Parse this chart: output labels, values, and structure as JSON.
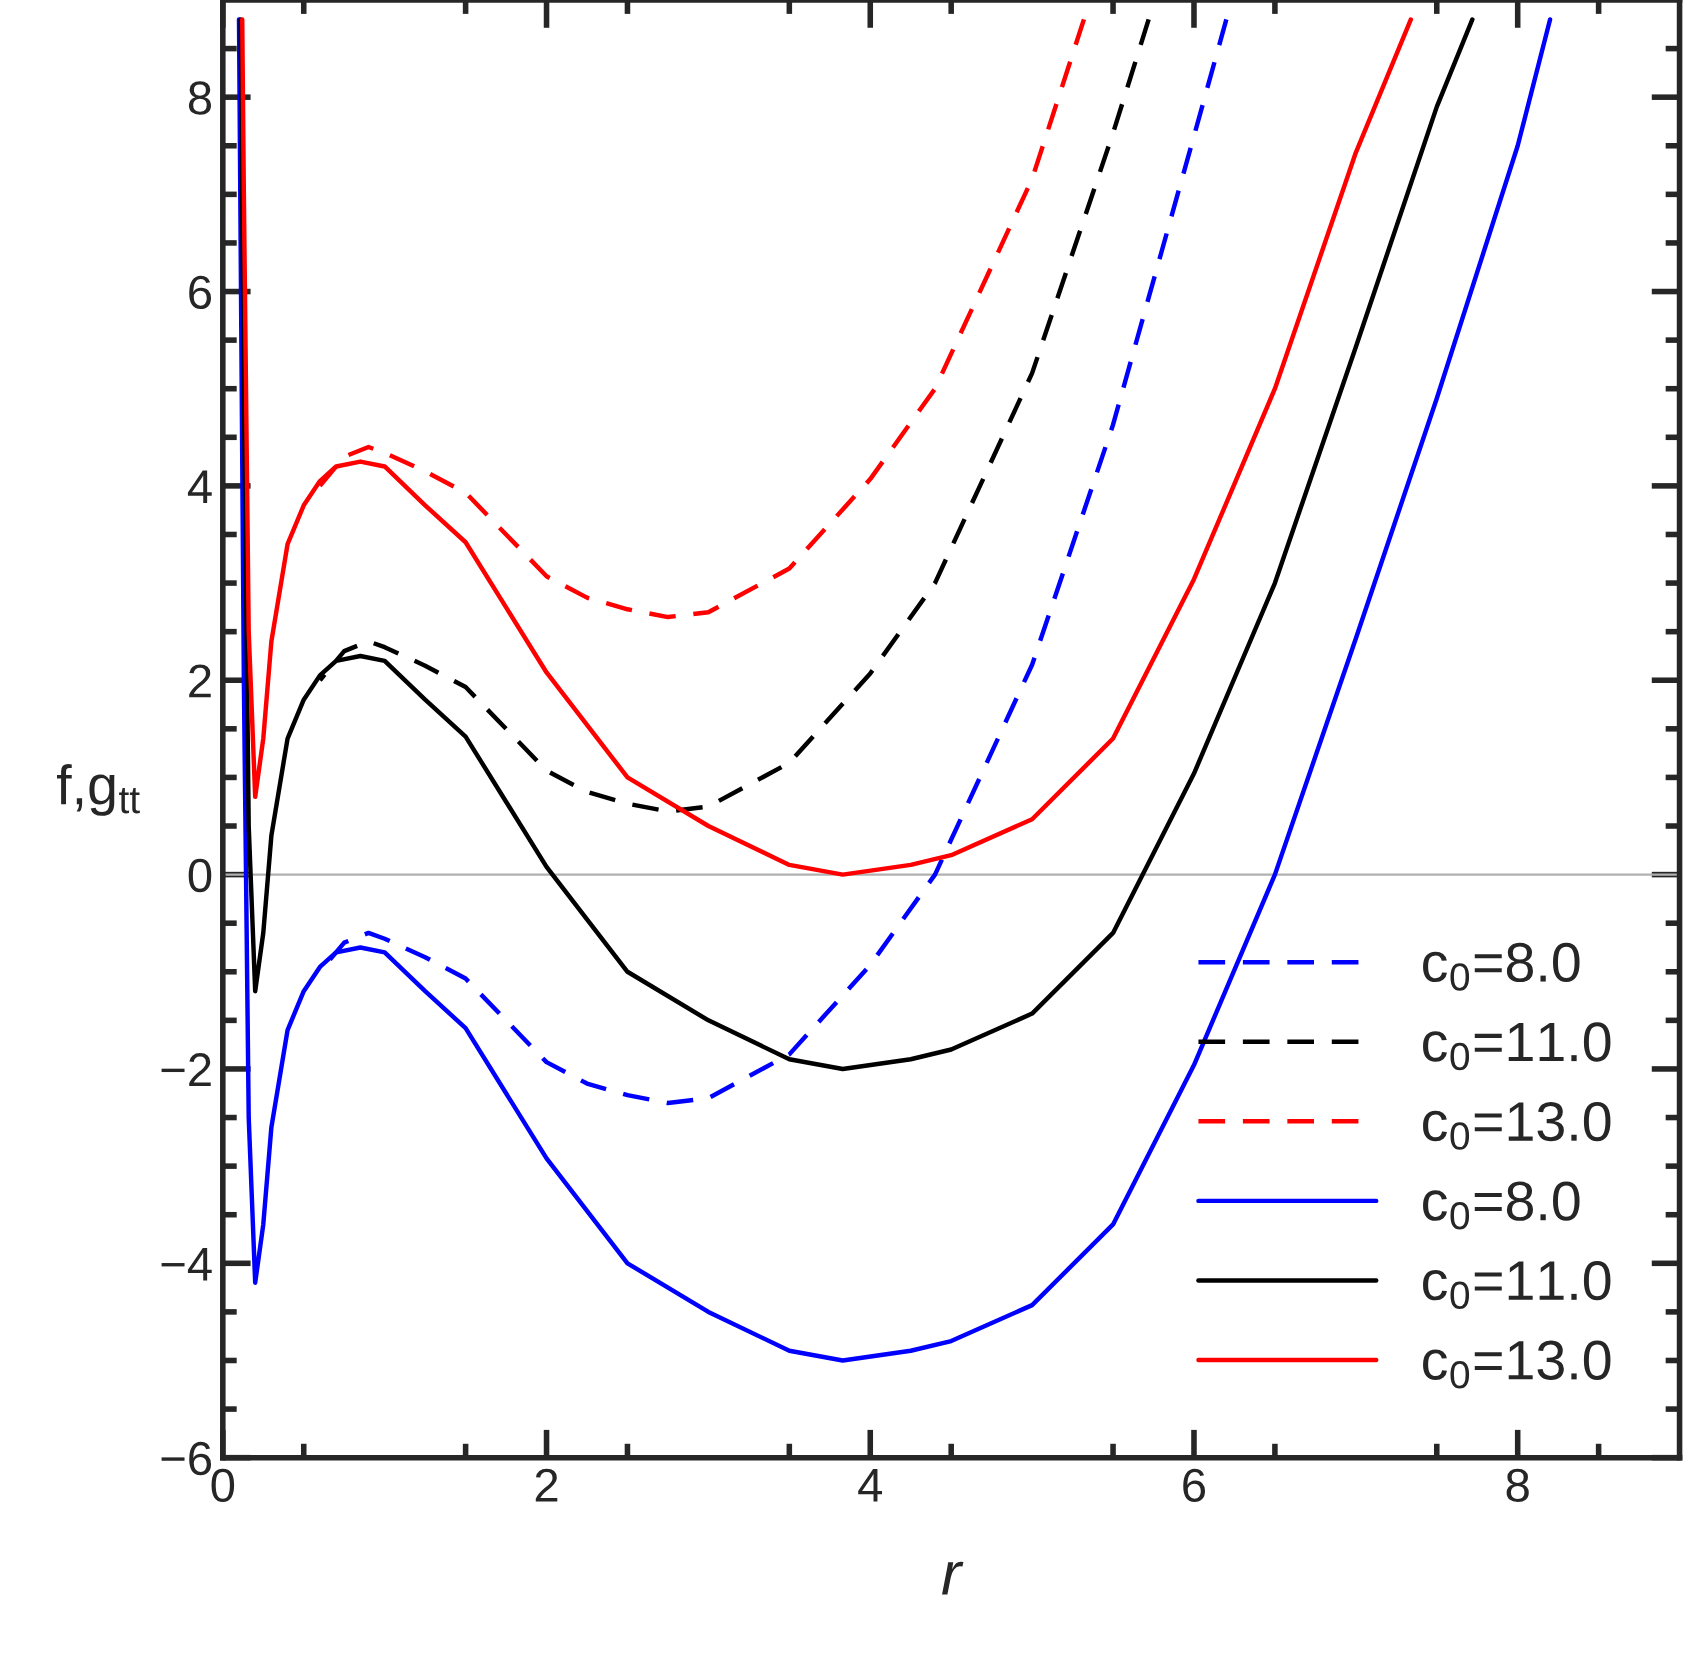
{
  "chart_data": {
    "type": "line",
    "xlabel": "r",
    "ylabel": "f,g$_{tt}$",
    "xlim": [
      0,
      9
    ],
    "xticks": [
      0,
      2,
      4,
      6,
      8
    ],
    "ylim": [
      -6,
      9
    ],
    "yticks": [
      {
        "value": -6,
        "label": "−6"
      },
      {
        "value": -4,
        "label": "−4"
      },
      {
        "value": -2,
        "label": "−2"
      },
      0,
      2,
      4,
      6,
      8
    ],
    "grid": false,
    "legend": "bottom right",
    "marker": "none",
    "ref_lines": [
      {
        "axis": "y",
        "value": 0,
        "color": "#b0b0b0",
        "line_style": "solid"
      }
    ],
    "series": [
      {
        "name": "c$_{0}$=8.0",
        "color": "#0000ff",
        "line_style": "dashed",
        "x": [
          0.6,
          0.75,
          0.9,
          1.0,
          1.25,
          1.5,
          1.75,
          2.0,
          2.25,
          2.5,
          2.75,
          3.0,
          3.5,
          4.0,
          4.4,
          5.0,
          5.5,
          6.0,
          6.2
        ],
        "values": [
          -1.0,
          -0.7,
          -0.6,
          -0.66,
          -0.85,
          -1.07,
          -1.5,
          -1.93,
          -2.15,
          -2.27,
          -2.35,
          -2.3,
          -1.85,
          -0.93,
          0,
          2.16,
          4.63,
          7.6,
          8.8
        ]
      },
      {
        "name": "c$_{0}$=11.0",
        "color": "#000000",
        "line_style": "dashed",
        "x": [
          0.6,
          0.75,
          0.9,
          1.0,
          1.25,
          1.5,
          1.75,
          2.0,
          2.25,
          2.5,
          2.75,
          3.0,
          3.5,
          4.0,
          4.4,
          5.0,
          5.5,
          5.72
        ],
        "values": [
          2.0,
          2.3,
          2.4,
          2.34,
          2.15,
          1.93,
          1.5,
          1.07,
          0.85,
          0.73,
          0.65,
          0.7,
          1.15,
          2.07,
          3.0,
          5.16,
          7.63,
          8.8
        ]
      },
      {
        "name": "c$_{0}$=13.0",
        "color": "#ff0000",
        "line_style": "dashed",
        "x": [
          0.6,
          0.75,
          0.9,
          1.0,
          1.25,
          1.5,
          1.75,
          2.0,
          2.25,
          2.5,
          2.75,
          3.0,
          3.5,
          4.0,
          4.4,
          5.0,
          5.32
        ],
        "values": [
          4.0,
          4.3,
          4.4,
          4.34,
          4.15,
          3.93,
          3.5,
          3.07,
          2.85,
          2.73,
          2.65,
          2.7,
          3.15,
          4.07,
          5.0,
          7.16,
          8.8
        ]
      },
      {
        "name": "c$_{0}$=8.0",
        "color": "#0000ff",
        "line_style": "solid",
        "x": [
          0.1,
          0.13,
          0.16,
          0.2,
          0.25,
          0.3,
          0.4,
          0.5,
          0.6,
          0.7,
          0.85,
          1.0,
          1.25,
          1.5,
          1.75,
          2.0,
          2.5,
          3.0,
          3.5,
          3.83,
          4.25,
          4.5,
          5.0,
          5.5,
          6.0,
          6.5,
          7.0,
          7.5,
          8.0,
          8.2
        ],
        "values": [
          8.8,
          2,
          -2.5,
          -4.2,
          -3.6,
          -2.6,
          -1.6,
          -1.2,
          -0.95,
          -0.8,
          -0.75,
          -0.8,
          -1.2,
          -1.58,
          -2.25,
          -2.92,
          -4.0,
          -4.5,
          -4.9,
          -5.0,
          -4.9,
          -4.8,
          -4.43,
          -3.6,
          -1.96,
          0,
          2.43,
          4.9,
          7.5,
          8.8
        ]
      },
      {
        "name": "c$_{0}$=11.0",
        "color": "#000000",
        "line_style": "solid",
        "x": [
          0.11,
          0.13,
          0.16,
          0.2,
          0.25,
          0.3,
          0.4,
          0.5,
          0.6,
          0.7,
          0.85,
          1.0,
          1.25,
          1.5,
          1.75,
          2.0,
          2.5,
          3.0,
          3.5,
          3.83,
          4.25,
          4.5,
          5.0,
          5.5,
          6.0,
          6.5,
          7.0,
          7.5,
          7.72
        ],
        "values": [
          8.8,
          5,
          0.5,
          -1.2,
          -0.6,
          0.4,
          1.4,
          1.8,
          2.05,
          2.2,
          2.25,
          2.2,
          1.8,
          1.42,
          0.75,
          0.08,
          -1.0,
          -1.5,
          -1.9,
          -2.0,
          -1.9,
          -1.8,
          -1.43,
          -0.6,
          1.04,
          3.0,
          5.43,
          7.9,
          8.8
        ]
      },
      {
        "name": "c$_{0}$=13.0",
        "color": "#ff0000",
        "line_style": "solid",
        "x": [
          0.12,
          0.13,
          0.16,
          0.2,
          0.25,
          0.3,
          0.4,
          0.5,
          0.6,
          0.7,
          0.85,
          1.0,
          1.25,
          1.5,
          1.75,
          2.0,
          2.5,
          3.0,
          3.5,
          3.83,
          4.25,
          4.5,
          5.0,
          5.5,
          6.0,
          6.5,
          7.0,
          7.34
        ],
        "values": [
          8.8,
          7,
          2.5,
          0.8,
          1.4,
          2.4,
          3.4,
          3.8,
          4.05,
          4.2,
          4.25,
          4.2,
          3.8,
          3.42,
          2.75,
          2.08,
          1.0,
          0.5,
          0.1,
          0.0,
          0.1,
          0.2,
          0.57,
          1.4,
          3.04,
          5.0,
          7.43,
          8.8
        ]
      }
    ]
  }
}
